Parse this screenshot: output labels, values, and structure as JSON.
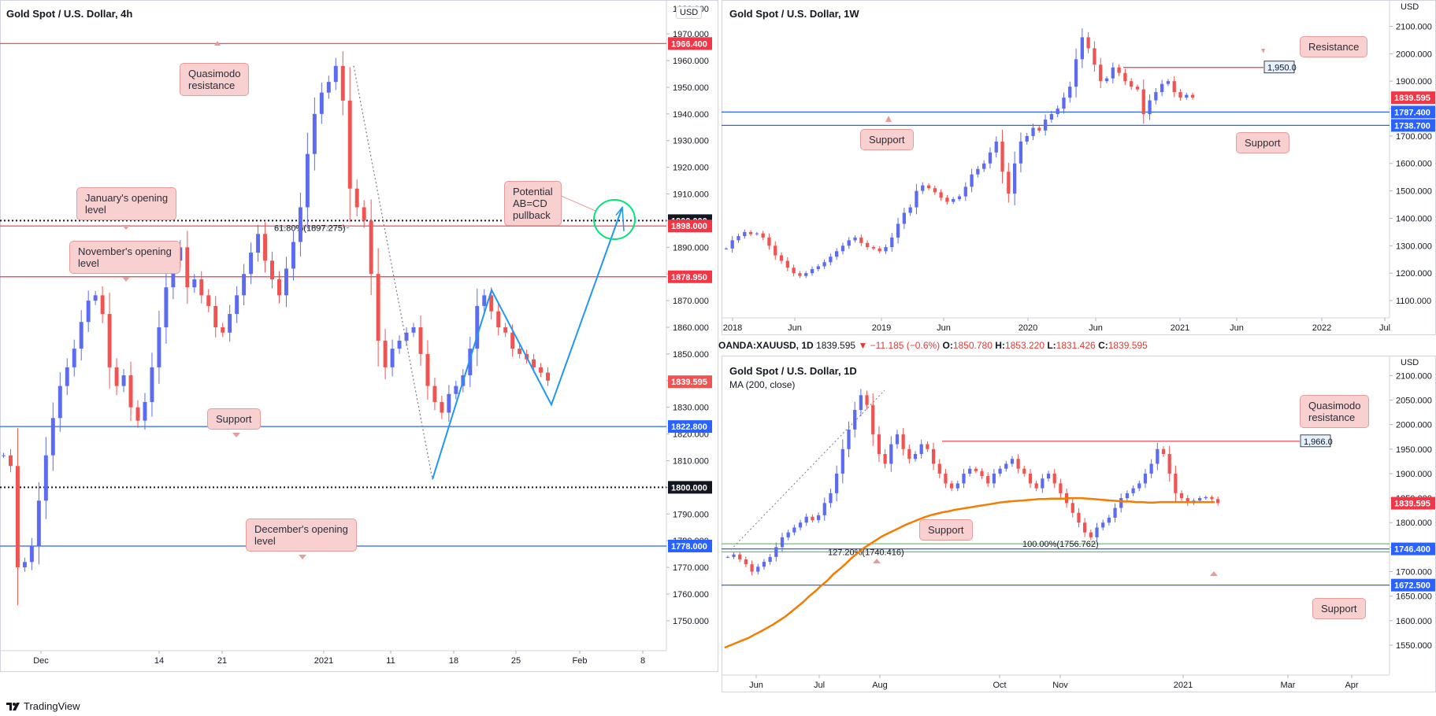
{
  "colors": {
    "up": "#5b6bf2",
    "down": "#f05350",
    "resistance": "#f23645",
    "support": "#2962ff",
    "ma": "#f57c00",
    "green": "#4caf50",
    "cyan": "#00bcd4",
    "callout_bg": "#f9d0d0",
    "blue_leg": "#2196f3"
  },
  "footer": {
    "brand": "TradingView",
    "logo_icon": "tradingview-logo-icon"
  },
  "panels": {
    "p4h": {
      "title": "Gold Spot / U.S. Dollar, 4h",
      "currency_badge": "USD",
      "notes": {
        "quasimodo": [
          "Quasimodo",
          "resistance"
        ],
        "january": [
          "January's opening",
          "level"
        ],
        "november": [
          "November's opening",
          "level"
        ],
        "support": [
          "Support"
        ],
        "abcd": [
          "Potential",
          "AB=CD",
          "pullback"
        ],
        "december": [
          "December's opening",
          "level"
        ]
      },
      "fib_label": "61.80%(1897.275)"
    },
    "pw": {
      "title": "Gold Spot / U.S. Dollar, 1W",
      "notes": {
        "resistance": [
          "Resistance"
        ],
        "support_left": [
          "Support"
        ],
        "support_right": [
          "Support"
        ]
      },
      "level_label": "1,950.0"
    },
    "pd": {
      "title": "Gold Spot / U.S. Dollar, 1D",
      "ma_label": "MA (200, close)",
      "notes": {
        "quasimodo": [
          "Quasimodo",
          "resistance"
        ],
        "support_mid": [
          "Support"
        ],
        "support_right": [
          "Support"
        ]
      },
      "level_label": "1,966.0",
      "fib1": "127.20%(1740.416)",
      "fib2": "100.00%(1756.762)"
    }
  },
  "infobar": {
    "symbol": "OANDA:XAUUSD, 1D",
    "last": "1839.595",
    "change": "▼ −11.185 (−0.6%)",
    "o_label": "O:",
    "o": "1850.780",
    "h_label": "H:",
    "h": "1853.220",
    "l_label": "L:",
    "l": "1831.426",
    "c_label": "C:",
    "c": "1839.595"
  },
  "chart_data": [
    {
      "type": "line",
      "title": "Gold Spot / U.S. Dollar, 4h",
      "ylim": [
        1742,
        1978
      ],
      "y_ticks": [
        1970,
        1960,
        1950,
        1940,
        1930,
        1920,
        1910,
        1900,
        1890,
        1880,
        1870,
        1860,
        1850,
        1840,
        1830,
        1820,
        1810,
        1800,
        1790,
        1780,
        1770,
        1760,
        1750
      ],
      "x_labels": [
        "Dec",
        "14",
        "21",
        "2021",
        "11",
        "18",
        "25",
        "Feb",
        "8"
      ],
      "top_partial_tick": "1980",
      "price_tags": [
        {
          "label": "1966.400",
          "value": 1966.4,
          "kind": "resistance"
        },
        {
          "label": "1900.000",
          "value": 1900.0,
          "kind": "psych"
        },
        {
          "label": "1898.000",
          "value": 1898.0,
          "kind": "resistance"
        },
        {
          "label": "1878.950",
          "value": 1878.95,
          "kind": "resistance"
        },
        {
          "label": "1839.595",
          "value": 1839.595,
          "kind": "last"
        },
        {
          "label": "1822.800",
          "value": 1822.8,
          "kind": "support"
        },
        {
          "label": "1800.000",
          "value": 1800.0,
          "kind": "psych"
        },
        {
          "label": "1778.000",
          "value": 1778.0,
          "kind": "support"
        }
      ],
      "series": [
        {
          "values": [
            1812,
            1808,
            1770,
            1772,
            1778,
            1795,
            1812,
            1826,
            1838,
            1845,
            1852,
            1862,
            1870,
            1872,
            1865,
            1845,
            1838,
            1842,
            1830,
            1825,
            1832,
            1845,
            1860,
            1875,
            1885,
            1890,
            1875,
            1878,
            1872,
            1868,
            1860,
            1858,
            1865,
            1872,
            1880,
            1888,
            1895,
            1885,
            1878,
            1872,
            1882,
            1892,
            1905,
            1925,
            1940,
            1948,
            1952,
            1958,
            1945,
            1912,
            1905,
            1900,
            1880,
            1855,
            1845,
            1852,
            1855,
            1858,
            1860,
            1850,
            1838,
            1832,
            1828,
            1835,
            1838,
            1842,
            1852,
            1868,
            1872,
            1866,
            1860,
            1858,
            1852,
            1850,
            1848,
            1845,
            1843,
            1840
          ]
        }
      ]
    },
    {
      "type": "line",
      "title": "Gold Spot / U.S. Dollar, 1W",
      "ylim": [
        1060,
        2150
      ],
      "y_ticks": [
        2100,
        2000,
        1900,
        1800,
        1700,
        1600,
        1500,
        1400,
        1300,
        1200,
        1100
      ],
      "x_labels": [
        "2018",
        "Jun",
        "2019",
        "Jun",
        "2020",
        "Jun",
        "2021",
        "Jun",
        "2022",
        "Jul"
      ],
      "price_tags": [
        {
          "label": "1839.595",
          "value": 1839.595,
          "kind": "last"
        },
        {
          "label": "1787.400",
          "value": 1787.4,
          "kind": "support"
        },
        {
          "label": "1738.700",
          "value": 1738.7,
          "kind": "support"
        }
      ],
      "resistance_level": 1950.0,
      "series": [
        {
          "values": [
            1290,
            1320,
            1335,
            1350,
            1342,
            1345,
            1330,
            1300,
            1265,
            1245,
            1220,
            1200,
            1190,
            1200,
            1215,
            1225,
            1240,
            1260,
            1280,
            1300,
            1320,
            1330,
            1310,
            1295,
            1290,
            1280,
            1295,
            1330,
            1380,
            1420,
            1440,
            1500,
            1520,
            1510,
            1495,
            1475,
            1460,
            1470,
            1480,
            1515,
            1560,
            1580,
            1600,
            1640,
            1680,
            1570,
            1490,
            1600,
            1680,
            1700,
            1730,
            1720,
            1760,
            1780,
            1800,
            1840,
            1880,
            1980,
            2060,
            2020,
            1960,
            1900,
            1910,
            1950,
            1930,
            1900,
            1880,
            1870,
            1780,
            1830,
            1860,
            1890,
            1900,
            1860,
            1840,
            1850,
            1840
          ]
        }
      ]
    },
    {
      "type": "line",
      "title": "Gold Spot / U.S. Dollar, 1D",
      "ylim": [
        1505,
        2115
      ],
      "y_ticks": [
        2100,
        2050,
        2000,
        1950,
        1900,
        1850,
        1800,
        1750,
        1700,
        1650,
        1600,
        1550
      ],
      "x_labels": [
        "Jun",
        "Jul",
        "Aug",
        "Oct",
        "Nov",
        "2021",
        "Mar",
        "Apr"
      ],
      "price_tags": [
        {
          "label": "1839.595",
          "value": 1839.595,
          "kind": "last"
        },
        {
          "label": "1746.400",
          "value": 1746.4,
          "kind": "support"
        },
        {
          "label": "1672.500",
          "value": 1672.5,
          "kind": "support"
        }
      ],
      "quasimodo_level": 1966.0,
      "fib_levels": [
        {
          "label": "127.20%(1740.416)",
          "value": 1740.416
        },
        {
          "label": "100.00%(1756.762)",
          "value": 1756.762
        }
      ],
      "series": [
        {
          "name": "price",
          "values": [
            1730,
            1735,
            1725,
            1715,
            1700,
            1710,
            1720,
            1730,
            1750,
            1770,
            1780,
            1790,
            1800,
            1812,
            1805,
            1815,
            1840,
            1860,
            1900,
            1950,
            1990,
            2030,
            2060,
            2040,
            1980,
            1940,
            1920,
            1960,
            1980,
            1950,
            1930,
            1940,
            1960,
            1950,
            1920,
            1900,
            1880,
            1870,
            1880,
            1900,
            1910,
            1905,
            1895,
            1880,
            1900,
            1910,
            1920,
            1930,
            1910,
            1900,
            1880,
            1870,
            1890,
            1900,
            1880,
            1860,
            1840,
            1820,
            1800,
            1780,
            1770,
            1790,
            1800,
            1810,
            1830,
            1850,
            1860,
            1870,
            1880,
            1900,
            1920,
            1950,
            1940,
            1900,
            1860,
            1850,
            1840,
            1845,
            1850,
            1852,
            1848,
            1840
          ]
        },
        {
          "name": "MA (200, close)",
          "values": [
            1545,
            1550,
            1555,
            1560,
            1565,
            1572,
            1578,
            1585,
            1592,
            1600,
            1608,
            1618,
            1628,
            1638,
            1650,
            1660,
            1672,
            1682,
            1695,
            1705,
            1716,
            1728,
            1738,
            1748,
            1756,
            1764,
            1772,
            1778,
            1784,
            1790,
            1796,
            1801,
            1806,
            1811,
            1815,
            1818,
            1821,
            1823,
            1826,
            1828,
            1830,
            1832,
            1834,
            1836,
            1838,
            1840,
            1842,
            1843,
            1844,
            1845,
            1846,
            1847,
            1848,
            1848,
            1849,
            1849,
            1849,
            1850,
            1850,
            1850,
            1849,
            1848,
            1847,
            1846,
            1845,
            1844,
            1843,
            1843,
            1842,
            1842,
            1841,
            1841,
            1842,
            1842,
            1842,
            1842,
            1842,
            1842,
            1842,
            1842,
            1842,
            1842
          ]
        }
      ]
    }
  ]
}
